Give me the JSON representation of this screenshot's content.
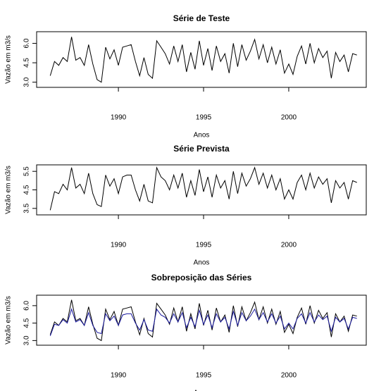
{
  "chart_data": [
    {
      "type": "line",
      "title": "Série de Teste",
      "xlabel": "Anos",
      "ylabel": "Vazão em m3/s",
      "x": [
        1986,
        1986.25,
        1986.5,
        1986.75,
        1987,
        1987.25,
        1987.5,
        1987.75,
        1988,
        1988.25,
        1988.5,
        1988.75,
        1989,
        1989.25,
        1989.5,
        1989.75,
        1990,
        1990.25,
        1990.5,
        1990.75,
        1991,
        1991.25,
        1991.5,
        1991.75,
        1992,
        1992.25,
        1992.5,
        1992.75,
        1993,
        1993.25,
        1993.5,
        1993.75,
        1994,
        1994.25,
        1994.5,
        1994.75,
        1995,
        1995.25,
        1995.5,
        1995.75,
        1996,
        1996.25,
        1996.5,
        1996.75,
        1997,
        1997.25,
        1997.5,
        1997.75,
        1998,
        1998.25,
        1998.5,
        1998.75,
        1999,
        1999.25,
        1999.5,
        1999.75,
        2000,
        2000.25,
        2000.5,
        2000.75,
        2001,
        2001.25,
        2001.5,
        2001.75,
        2002,
        2002.25,
        2002.5,
        2002.75,
        2003,
        2003.25,
        2003.5,
        2003.75,
        2004
      ],
      "values": [
        3.5,
        4.6,
        4.3,
        4.9,
        4.6,
        6.5,
        4.7,
        4.9,
        4.3,
        5.9,
        4.4,
        3.2,
        3.0,
        5.7,
        4.8,
        5.5,
        4.3,
        5.7,
        5.8,
        5.9,
        4.6,
        3.5,
        4.9,
        3.6,
        3.3,
        6.2,
        5.7,
        5.2,
        4.4,
        5.8,
        4.6,
        5.9,
        3.8,
        5.3,
        4.0,
        6.2,
        4.3,
        5.6,
        3.9,
        5.8,
        4.6,
        5.2,
        3.7,
        6.0,
        4.2,
        5.9,
        4.7,
        5.4,
        6.3,
        4.8,
        5.9,
        4.5,
        5.7,
        4.4,
        5.5,
        3.7,
        4.4,
        3.6,
        5.0,
        5.8,
        4.4,
        6.0,
        4.5,
        5.6,
        4.9,
        5.4,
        3.3,
        5.3,
        4.6,
        5.1,
        3.8,
        5.2,
        5.1
      ],
      "color": "#000000",
      "xlim": [
        1985.2,
        2004.55
      ],
      "xticks": [
        1990,
        1995,
        2000
      ],
      "ylim": [
        2.6,
        6.9
      ],
      "yticks": [
        {
          "value": 3,
          "label": "3.0"
        },
        4.5,
        {
          "value": 6,
          "label": "6.0"
        }
      ]
    },
    {
      "type": "line",
      "title": "Série Prevista",
      "xlabel": "Anos",
      "ylabel": "Vazão em m3/s",
      "x": [
        1986,
        1986.25,
        1986.5,
        1986.75,
        1987,
        1987.25,
        1987.5,
        1987.75,
        1988,
        1988.25,
        1988.5,
        1988.75,
        1989,
        1989.25,
        1989.5,
        1989.75,
        1990,
        1990.25,
        1990.5,
        1990.75,
        1991,
        1991.25,
        1991.5,
        1991.75,
        1992,
        1992.25,
        1992.5,
        1992.75,
        1993,
        1993.25,
        1993.5,
        1993.75,
        1994,
        1994.25,
        1994.5,
        1994.75,
        1995,
        1995.25,
        1995.5,
        1995.75,
        1996,
        1996.25,
        1996.5,
        1996.75,
        1997,
        1997.25,
        1997.5,
        1997.75,
        1998,
        1998.25,
        1998.5,
        1998.75,
        1999,
        1999.25,
        1999.5,
        1999.75,
        2000,
        2000.25,
        2000.5,
        2000.75,
        2001,
        2001.25,
        2001.5,
        2001.75,
        2002,
        2002.25,
        2002.5,
        2002.75,
        2003,
        2003.25,
        2003.5,
        2003.75,
        2004
      ],
      "values": [
        3.4,
        4.4,
        4.3,
        4.8,
        4.5,
        5.7,
        4.6,
        4.8,
        4.3,
        5.4,
        4.3,
        3.7,
        3.6,
        5.3,
        4.7,
        5.1,
        4.3,
        5.2,
        5.3,
        5.3,
        4.5,
        3.9,
        4.8,
        3.9,
        3.8,
        5.7,
        5.2,
        5.0,
        4.5,
        5.3,
        4.6,
        5.4,
        4.1,
        5.0,
        4.2,
        5.6,
        4.4,
        5.2,
        4.1,
        5.3,
        4.6,
        5.0,
        4.0,
        5.5,
        4.3,
        5.4,
        4.7,
        5.1,
        5.7,
        4.8,
        5.4,
        4.6,
        5.3,
        4.5,
        5.1,
        4.0,
        4.5,
        4.0,
        4.9,
        5.3,
        4.5,
        5.4,
        4.6,
        5.2,
        4.8,
        5.1,
        3.8,
        5.0,
        4.6,
        4.9,
        4.0,
        5.0,
        4.9
      ],
      "color": "#000000",
      "xlim": [
        1985.2,
        2004.55
      ],
      "xticks": [
        1990,
        1995,
        2000
      ],
      "ylim": [
        3.15,
        5.85
      ],
      "yticks": [
        3.5,
        4.5,
        5.5
      ]
    },
    {
      "type": "line",
      "title": "Sobreposição das Séries",
      "xlabel": "Anos",
      "ylabel": "Vazão em m3/s",
      "x": [
        1986,
        1986.25,
        1986.5,
        1986.75,
        1987,
        1987.25,
        1987.5,
        1987.75,
        1988,
        1988.25,
        1988.5,
        1988.75,
        1989,
        1989.25,
        1989.5,
        1989.75,
        1990,
        1990.25,
        1990.5,
        1990.75,
        1991,
        1991.25,
        1991.5,
        1991.75,
        1992,
        1992.25,
        1992.5,
        1992.75,
        1993,
        1993.25,
        1993.5,
        1993.75,
        1994,
        1994.25,
        1994.5,
        1994.75,
        1995,
        1995.25,
        1995.5,
        1995.75,
        1996,
        1996.25,
        1996.5,
        1996.75,
        1997,
        1997.25,
        1997.5,
        1997.75,
        1998,
        1998.25,
        1998.5,
        1998.75,
        1999,
        1999.25,
        1999.5,
        1999.75,
        2000,
        2000.25,
        2000.5,
        2000.75,
        2001,
        2001.25,
        2001.5,
        2001.75,
        2002,
        2002.25,
        2002.5,
        2002.75,
        2003,
        2003.25,
        2003.5,
        2003.75,
        2004
      ],
      "series": [
        {
          "color": "#000000",
          "values": [
            3.5,
            4.6,
            4.3,
            4.9,
            4.6,
            6.5,
            4.7,
            4.9,
            4.3,
            5.9,
            4.4,
            3.2,
            3.0,
            5.7,
            4.8,
            5.5,
            4.3,
            5.7,
            5.8,
            5.9,
            4.6,
            3.5,
            4.9,
            3.6,
            3.3,
            6.2,
            5.7,
            5.2,
            4.4,
            5.8,
            4.6,
            5.9,
            3.8,
            5.3,
            4.0,
            6.2,
            4.3,
            5.6,
            3.9,
            5.8,
            4.6,
            5.2,
            3.7,
            6.0,
            4.2,
            5.9,
            4.7,
            5.4,
            6.3,
            4.8,
            5.9,
            4.5,
            5.7,
            4.4,
            5.5,
            3.7,
            4.4,
            3.6,
            5.0,
            5.8,
            4.4,
            6.0,
            4.5,
            5.6,
            4.9,
            5.4,
            3.3,
            5.3,
            4.6,
            5.1,
            3.8,
            5.2,
            5.1
          ]
        },
        {
          "color": "#1a1aa0",
          "values": [
            3.4,
            4.4,
            4.3,
            4.8,
            4.5,
            5.7,
            4.6,
            4.8,
            4.3,
            5.4,
            4.3,
            3.7,
            3.6,
            5.3,
            4.7,
            5.1,
            4.3,
            5.2,
            5.3,
            5.3,
            4.5,
            3.9,
            4.8,
            3.9,
            3.8,
            5.7,
            5.2,
            5.0,
            4.5,
            5.3,
            4.6,
            5.4,
            4.1,
            5.0,
            4.2,
            5.6,
            4.4,
            5.2,
            4.1,
            5.3,
            4.6,
            5.0,
            4.0,
            5.5,
            4.3,
            5.4,
            4.7,
            5.1,
            5.7,
            4.8,
            5.4,
            4.6,
            5.3,
            4.5,
            5.1,
            4.0,
            4.5,
            4.0,
            4.9,
            5.3,
            4.5,
            5.4,
            4.6,
            5.2,
            4.8,
            5.1,
            3.8,
            5.0,
            4.6,
            4.9,
            4.0,
            5.0,
            4.9
          ]
        }
      ],
      "xlim": [
        1985.2,
        2004.55
      ],
      "xticks": [
        1990,
        1995,
        2000
      ],
      "ylim": [
        2.6,
        6.9
      ],
      "yticks": [
        {
          "value": 3,
          "label": "3.0"
        },
        4.5,
        {
          "value": 6,
          "label": "6.0"
        }
      ]
    }
  ]
}
